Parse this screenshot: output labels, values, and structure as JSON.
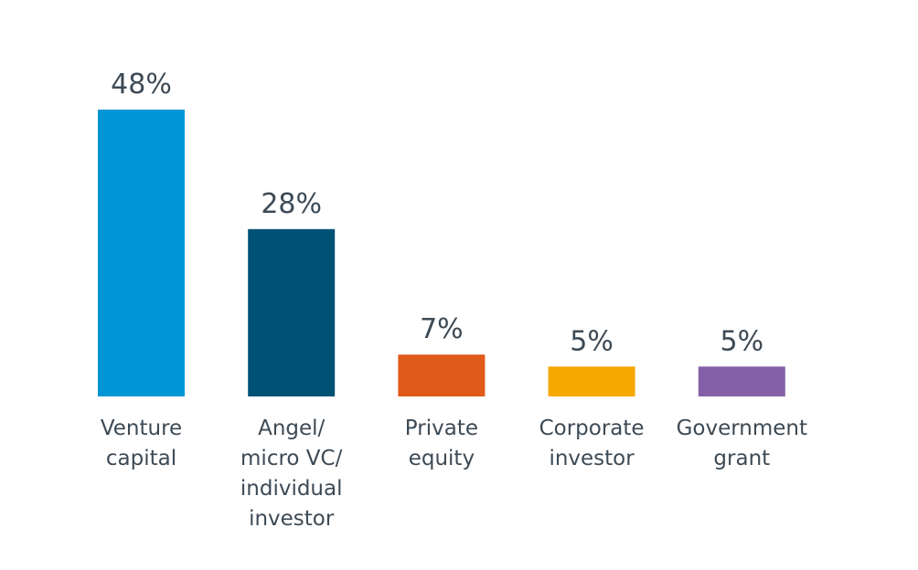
{
  "chart_data": {
    "type": "bar",
    "categories": [
      [
        "Venture",
        "capital"
      ],
      [
        "Angel/",
        "micro VC/",
        "individual",
        "investor"
      ],
      [
        "Private",
        "equity"
      ],
      [
        "Corporate",
        "investor"
      ],
      [
        "Government",
        "grant"
      ]
    ],
    "values": [
      48,
      28,
      7,
      5,
      5
    ],
    "value_labels": [
      "48%",
      "28%",
      "7%",
      "5%",
      "5%"
    ],
    "colors": [
      "#0096d6",
      "#005275",
      "#e05a1a",
      "#f5a800",
      "#8460a6"
    ],
    "ylim": [
      0,
      48
    ],
    "grid": false,
    "legend": "none"
  }
}
